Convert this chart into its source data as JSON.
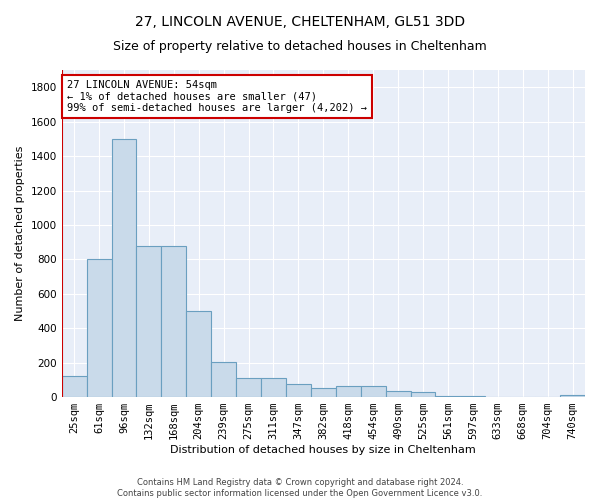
{
  "title1": "27, LINCOLN AVENUE, CHELTENHAM, GL51 3DD",
  "title2": "Size of property relative to detached houses in Cheltenham",
  "xlabel": "Distribution of detached houses by size in Cheltenham",
  "ylabel": "Number of detached properties",
  "bin_labels": [
    "25sqm",
    "61sqm",
    "96sqm",
    "132sqm",
    "168sqm",
    "204sqm",
    "239sqm",
    "275sqm",
    "311sqm",
    "347sqm",
    "382sqm",
    "418sqm",
    "454sqm",
    "490sqm",
    "525sqm",
    "561sqm",
    "597sqm",
    "633sqm",
    "668sqm",
    "704sqm",
    "740sqm"
  ],
  "bar_heights": [
    125,
    800,
    1500,
    875,
    875,
    500,
    205,
    110,
    110,
    75,
    50,
    65,
    65,
    35,
    30,
    5,
    5,
    2,
    2,
    2,
    15
  ],
  "bar_color": "#c9daea",
  "bar_edge_color": "#6a9fc0",
  "annotation_text": "27 LINCOLN AVENUE: 54sqm\n← 1% of detached houses are smaller (47)\n99% of semi-detached houses are larger (4,202) →",
  "annotation_box_color": "white",
  "annotation_box_edge_color": "#cc0000",
  "ylim": [
    0,
    1900
  ],
  "yticks": [
    0,
    200,
    400,
    600,
    800,
    1000,
    1200,
    1400,
    1600,
    1800
  ],
  "background_color": "#e8eef8",
  "grid_color": "#ffffff",
  "footer_text": "Contains HM Land Registry data © Crown copyright and database right 2024.\nContains public sector information licensed under the Open Government Licence v3.0.",
  "title1_fontsize": 10,
  "title2_fontsize": 9,
  "xlabel_fontsize": 8,
  "ylabel_fontsize": 8,
  "tick_fontsize": 7.5,
  "annot_fontsize": 7.5
}
